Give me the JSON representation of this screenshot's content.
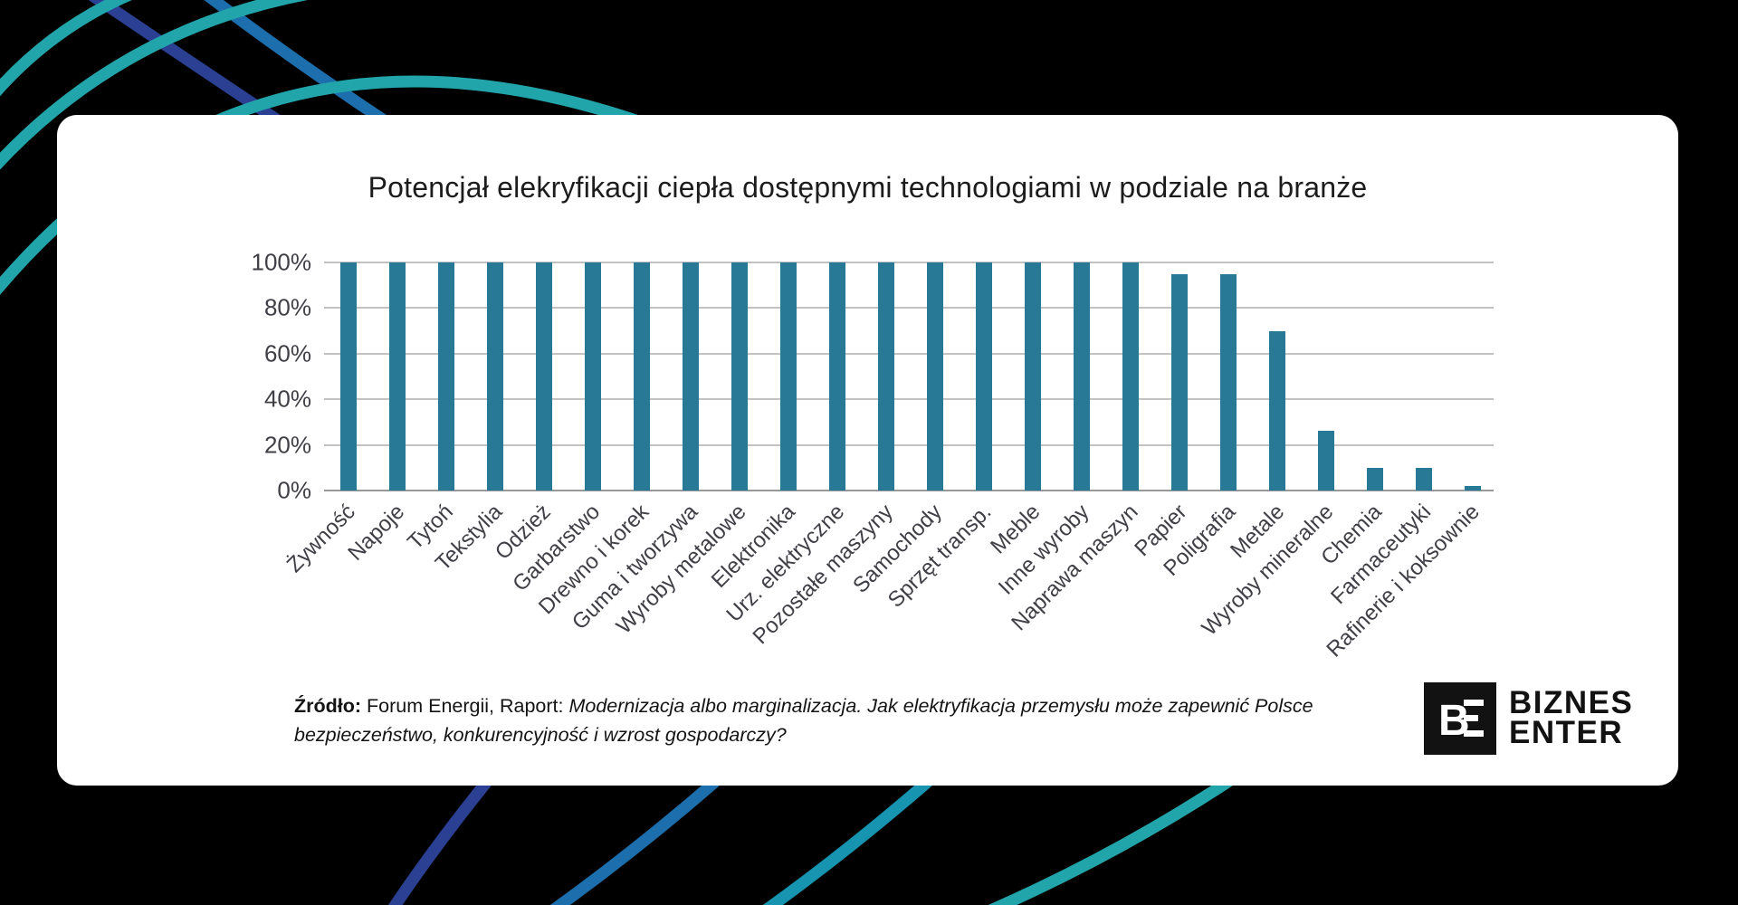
{
  "colors": {
    "background": "#000000",
    "card": "#ffffff",
    "bar": "#287996",
    "grid": "#c2c2c2",
    "axis_line": "#9a9a9a",
    "text": "#3f3f46",
    "title": "#1c1c1c",
    "arc_teal": "#21a5ab",
    "arc_navy": "#2b4093",
    "arc_blue": "#1c6ead",
    "arc_teal_dark": "#1794b0",
    "logo_black": "#121212"
  },
  "chart_data": {
    "type": "bar",
    "title": "Potencjał elekryfikacji ciepła dostępnymi technologiami w podziale na branże",
    "categories": [
      "Żywność",
      "Napoje",
      "Tytoń",
      "Tekstylia",
      "Odzież",
      "Garbarstwo",
      "Drewno i korek",
      "Guma i tworzywa",
      "Wyroby metalowe",
      "Elektronika",
      "Urz. elektryczne",
      "Pozostałe maszyny",
      "Samochody",
      "Sprzęt transp.",
      "Meble",
      "Inne wyroby",
      "Naprawa maszyn",
      "Papier",
      "Poligrafia",
      "Metale",
      "Wyroby mineralne",
      "Chemia",
      "Farmaceutyki",
      "Rafinerie i koksownie"
    ],
    "values": [
      100,
      100,
      100,
      100,
      100,
      100,
      100,
      100,
      100,
      100,
      100,
      100,
      100,
      100,
      100,
      100,
      100,
      95,
      95,
      70,
      26,
      10,
      10,
      2
    ],
    "unit": "%",
    "ylim": [
      0,
      100
    ],
    "yticks": [
      0,
      20,
      40,
      60,
      80,
      100
    ],
    "grid": true,
    "legend": false,
    "bar_color": "#287996",
    "xlabel": "",
    "ylabel": ""
  },
  "source": {
    "label": "Źródło:",
    "reference": " Forum Energii, Raport: ",
    "report_title": "Modernizacja albo marginalizacja. Jak elektryfikacja przemysłu może zapewnić Polsce bezpieczeństwo, konkurencyjność i wzrost gospodarczy?"
  },
  "logo": {
    "monogram": "BE",
    "line1": "BIZNES",
    "line2": "ENTER"
  }
}
